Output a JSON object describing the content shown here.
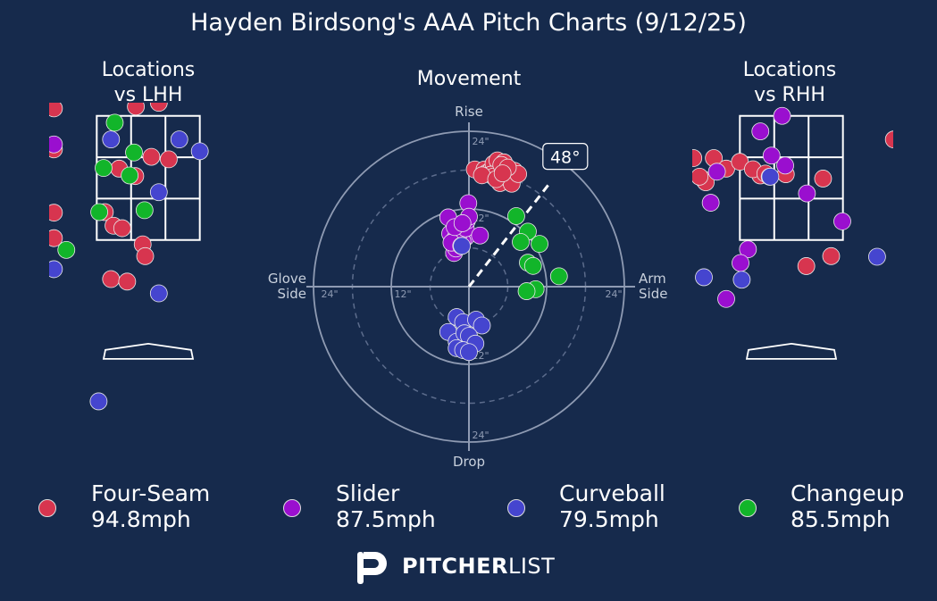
{
  "title": "Hayden Birdsong's AAA Pitch Charts (9/12/25)",
  "panels": {
    "left": "Locations\nvs LHH",
    "center": "Movement",
    "right": "Locations\nvs RHH"
  },
  "colors": {
    "background": "#162a4c",
    "four_seam": "#d7354f",
    "slider": "#9a0fcf",
    "curveball": "#4545cf",
    "changeup": "#12b52a"
  },
  "legend": [
    {
      "pitch": "Four-Seam",
      "speed": "94.8mph",
      "color": "#d7354f"
    },
    {
      "pitch": "Slider",
      "speed": "87.5mph",
      "color": "#9a0fcf"
    },
    {
      "pitch": "Curveball",
      "speed": "79.5mph",
      "color": "#4545cf"
    },
    {
      "pitch": "Changeup",
      "speed": "85.5mph",
      "color": "#12b52a"
    }
  ],
  "logo": {
    "bold": "PITCHER",
    "light": "LIST"
  },
  "chart_data": [
    {
      "type": "scatter",
      "name": "movement",
      "title": "Movement",
      "labels": {
        "top": "Rise",
        "bottom": "Drop",
        "left": "Glove\nSide",
        "right": "Arm\nSide"
      },
      "ring_labels": [
        "12\"",
        "24\""
      ],
      "arm_angle": "48°",
      "arm_angle_deg": 48,
      "xlim": [
        -24,
        24
      ],
      "ylim": [
        -24,
        24
      ],
      "series": [
        {
          "name": "Four-Seam",
          "color": "#d7354f",
          "points": [
            [
              0.9,
              18.1
            ],
            [
              2.4,
              18.1
            ],
            [
              2.8,
              17.6
            ],
            [
              3.4,
              18.0
            ],
            [
              4.0,
              18.0
            ],
            [
              3.8,
              19.0
            ],
            [
              4.6,
              18.5
            ],
            [
              4.4,
              19.5
            ],
            [
              5.4,
              19.2
            ],
            [
              5.6,
              18.0
            ],
            [
              6.4,
              17.6
            ],
            [
              7.0,
              17.9
            ],
            [
              3.4,
              17.3
            ],
            [
              4.6,
              17.2
            ],
            [
              5.9,
              16.8
            ],
            [
              4.8,
              16.0
            ],
            [
              6.3,
              16.5
            ],
            [
              6.6,
              15.9
            ],
            [
              3.8,
              17.0
            ],
            [
              7.6,
              17.4
            ],
            [
              5.0,
              18.8
            ],
            [
              2.0,
              17.2
            ],
            [
              6.0,
              18.4
            ],
            [
              4.2,
              16.6
            ],
            [
              5.2,
              17.5
            ]
          ]
        },
        {
          "name": "Slider",
          "color": "#9a0fcf",
          "points": [
            [
              -0.1,
              12.9
            ],
            [
              -3.2,
              10.7
            ],
            [
              -2.9,
              8.2
            ],
            [
              -2.3,
              5.2
            ],
            [
              -2.0,
              5.9
            ],
            [
              -2.1,
              7.5
            ],
            [
              -1.6,
              6.9
            ],
            [
              -0.5,
              7.6
            ],
            [
              -1.0,
              7.0
            ],
            [
              -1.4,
              8.4
            ],
            [
              -0.5,
              9.0
            ],
            [
              -0.3,
              10.2
            ],
            [
              1.7,
              7.9
            ],
            [
              -2.7,
              6.8
            ],
            [
              0.0,
              10.8
            ],
            [
              -2.2,
              9.2
            ],
            [
              -1.0,
              9.8
            ],
            [
              -1.2,
              6.3
            ]
          ]
        },
        {
          "name": "Curveball",
          "color": "#4545cf",
          "points": [
            [
              -1.1,
              6.3
            ],
            [
              -1.9,
              -4.7
            ],
            [
              -0.9,
              -5.5
            ],
            [
              1.1,
              -5.1
            ],
            [
              2.0,
              -6.0
            ],
            [
              -3.2,
              -7.0
            ],
            [
              -1.9,
              -8.5
            ],
            [
              -0.7,
              -7.2
            ],
            [
              0.0,
              -7.6
            ],
            [
              1.0,
              -8.8
            ],
            [
              -1.9,
              -9.5
            ],
            [
              -0.9,
              -9.8
            ],
            [
              0.0,
              -10.1
            ]
          ]
        },
        {
          "name": "Changeup",
          "color": "#12b52a",
          "points": [
            [
              7.3,
              10.9
            ],
            [
              9.1,
              8.5
            ],
            [
              8.0,
              6.9
            ],
            [
              10.9,
              6.6
            ],
            [
              9.1,
              3.7
            ],
            [
              9.9,
              3.2
            ],
            [
              10.3,
              -0.4
            ],
            [
              8.9,
              -0.7
            ],
            [
              13.9,
              1.6
            ]
          ]
        }
      ]
    },
    {
      "type": "scatter",
      "name": "locations-lhh",
      "title": "Locations\nvs LHH",
      "series": [
        {
          "name": "Four-Seam",
          "color": "#d7354f",
          "points": [
            [
              -0.97,
              5.43
            ],
            [
              -0.39,
              4.25
            ],
            [
              -0.23,
              4.15
            ],
            [
              -1.52,
              3.62
            ],
            [
              0.17,
              3.71
            ],
            [
              -0.2,
              3.65
            ],
            [
              -1.52,
              2.96
            ],
            [
              0.05,
              2.84
            ],
            [
              0.33,
              2.8
            ],
            [
              -0.47,
              2.65
            ],
            [
              -0.21,
              2.53
            ],
            [
              -2.55,
              2.02
            ],
            [
              -2.31,
              1.94
            ],
            [
              -1.52,
              1.94
            ],
            [
              -0.7,
              1.95
            ],
            [
              -0.56,
              1.73
            ],
            [
              -0.42,
              1.69
            ],
            [
              -1.52,
              1.53
            ],
            [
              -0.09,
              1.43
            ],
            [
              -0.05,
              1.24
            ],
            [
              -0.6,
              0.87
            ],
            [
              -0.34,
              0.83
            ],
            [
              -0.95,
              5.49
            ]
          ]
        },
        {
          "name": "Slider",
          "color": "#9a0fcf",
          "points": [
            [
              -1.52,
              3.04
            ],
            [
              -1.95,
              0.96
            ],
            [
              -3.5,
              -0.72
            ]
          ]
        },
        {
          "name": "Curveball",
          "color": "#4545cf",
          "points": [
            [
              -0.79,
              5.49
            ],
            [
              0.83,
              2.93
            ],
            [
              0.5,
              3.12
            ],
            [
              -0.6,
              3.12
            ],
            [
              0.17,
              2.27
            ],
            [
              -1.52,
              1.03
            ],
            [
              0.17,
              0.64
            ],
            [
              -2.2,
              -1.14
            ],
            [
              -0.8,
              -1.1
            ],
            [
              0.45,
              -2.36
            ],
            [
              -1.0,
              -2.72
            ]
          ]
        },
        {
          "name": "Changeup",
          "color": "#12b52a",
          "points": [
            [
              0.0,
              4.88
            ],
            [
              -0.54,
              3.39
            ],
            [
              -0.23,
              2.91
            ],
            [
              -0.3,
              2.54
            ],
            [
              -0.79,
              1.95
            ],
            [
              -1.32,
              1.34
            ],
            [
              -0.06,
              1.98
            ],
            [
              -0.72,
              2.66
            ],
            [
              -2.1,
              -0.1
            ],
            [
              -1.82,
              -0.46
            ]
          ]
        }
      ]
    },
    {
      "type": "scatter",
      "name": "locations-rhh",
      "title": "Locations\nvs RHH",
      "series": [
        {
          "name": "Four-Seam",
          "color": "#d7354f",
          "points": [
            [
              0.85,
              4.78
            ],
            [
              1.65,
              3.12
            ],
            [
              -1.92,
              3.02
            ],
            [
              -1.25,
              2.82
            ],
            [
              -1.05,
              2.65
            ],
            [
              -1.58,
              2.82
            ],
            [
              -0.83,
              2.76
            ],
            [
              -0.5,
              2.54
            ],
            [
              -0.62,
              2.64
            ],
            [
              -0.42,
              2.57
            ],
            [
              -0.09,
              2.56
            ],
            [
              0.51,
              2.49
            ],
            [
              -1.41,
              2.47
            ],
            [
              -1.38,
              2.43
            ],
            [
              0.64,
              1.24
            ],
            [
              0.24,
              1.08
            ],
            [
              -0.35,
              2.52
            ],
            [
              -1.48,
              2.52
            ]
          ]
        },
        {
          "name": "Slider",
          "color": "#9a0fcf",
          "points": [
            [
              -0.65,
              4.1
            ],
            [
              -0.38,
              3.88
            ],
            [
              -0.15,
              3.5
            ],
            [
              -1.2,
              2.6
            ],
            [
              -0.32,
              2.86
            ],
            [
              -0.5,
              3.25
            ],
            [
              -0.1,
              2.7
            ],
            [
              0.25,
              2.25
            ],
            [
              -1.3,
              2.1
            ],
            [
              -0.7,
              1.35
            ],
            [
              -0.82,
              1.13
            ],
            [
              0.82,
              1.8
            ],
            [
              -1.05,
              0.55
            ],
            [
              -3.26,
              -1.04
            ]
          ]
        },
        {
          "name": "Curveball",
          "color": "#4545cf",
          "points": [
            [
              0.85,
              5.54
            ],
            [
              0.8,
              4.95
            ],
            [
              -0.34,
              2.52
            ],
            [
              -1.41,
              0.9
            ],
            [
              -0.8,
              0.86
            ],
            [
              1.38,
              1.23
            ]
          ]
        },
        {
          "name": "Changeup",
          "color": "#12b52a",
          "points": []
        }
      ]
    }
  ]
}
